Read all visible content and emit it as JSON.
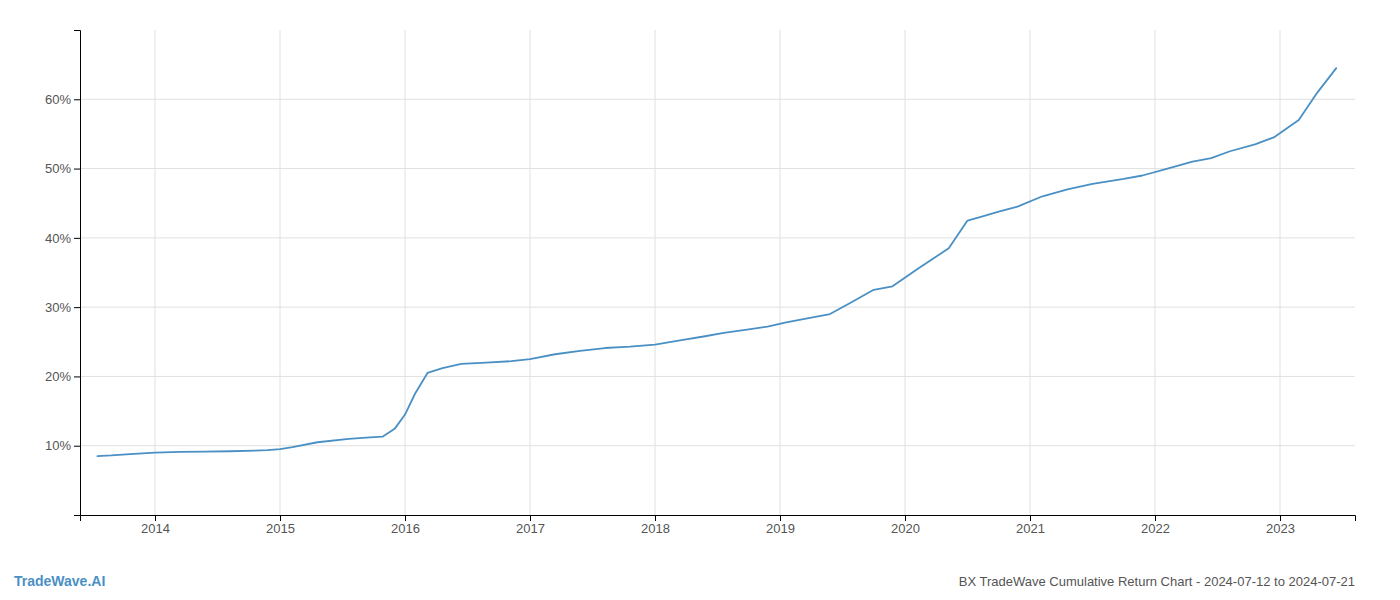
{
  "chart_data": {
    "type": "line",
    "title": "BX TradeWave Cumulative Return Chart - 2024-07-12 to 2024-07-21",
    "annotations": [
      "TradeWave.AI"
    ],
    "color": "#4a90c4",
    "x": [
      2013.54,
      2013.65,
      2013.8,
      2014.0,
      2014.2,
      2014.4,
      2014.6,
      2014.8,
      2014.9,
      2015.0,
      2015.1,
      2015.3,
      2015.55,
      2015.72,
      2015.82,
      2015.92,
      2016.0,
      2016.08,
      2016.18,
      2016.3,
      2016.45,
      2016.65,
      2016.85,
      2017.0,
      2017.2,
      2017.4,
      2017.6,
      2017.8,
      2018.0,
      2018.2,
      2018.4,
      2018.55,
      2018.75,
      2018.9,
      2019.05,
      2019.25,
      2019.4,
      2019.55,
      2019.75,
      2019.9,
      2020.1,
      2020.35,
      2020.5,
      2020.6,
      2020.75,
      2020.9,
      2021.1,
      2021.3,
      2021.5,
      2021.75,
      2021.9,
      2022.1,
      2022.3,
      2022.45,
      2022.6,
      2022.8,
      2022.95,
      2023.15,
      2023.3,
      2023.45
    ],
    "values": [
      8.5,
      8.6,
      8.8,
      9.0,
      9.1,
      9.15,
      9.2,
      9.3,
      9.35,
      9.5,
      9.8,
      10.5,
      11.0,
      11.2,
      11.3,
      12.5,
      14.5,
      17.5,
      20.5,
      21.2,
      21.8,
      22.0,
      22.2,
      22.5,
      23.2,
      23.7,
      24.1,
      24.3,
      24.6,
      25.2,
      25.8,
      26.3,
      26.8,
      27.2,
      27.8,
      28.5,
      29.0,
      30.5,
      32.5,
      33.0,
      35.5,
      38.5,
      42.5,
      43.0,
      43.8,
      44.5,
      46.0,
      47.0,
      47.8,
      48.5,
      49.0,
      50.0,
      51.0,
      51.5,
      52.5,
      53.5,
      54.5,
      57.0,
      61.0,
      64.5
    ],
    "xlim": [
      2013.4,
      2023.6
    ],
    "xticks": [
      2014,
      2015,
      2016,
      2017,
      2018,
      2019,
      2020,
      2021,
      2022,
      2023
    ],
    "ylim": [
      0,
      70
    ],
    "yticks": [
      {
        "value": 10,
        "label": "10%"
      },
      {
        "value": 20,
        "label": "20%"
      },
      {
        "value": 30,
        "label": "30%"
      },
      {
        "value": 40,
        "label": "40%"
      },
      {
        "value": 50,
        "label": "50%"
      },
      {
        "value": 60,
        "label": "60%"
      }
    ],
    "grid": true
  }
}
